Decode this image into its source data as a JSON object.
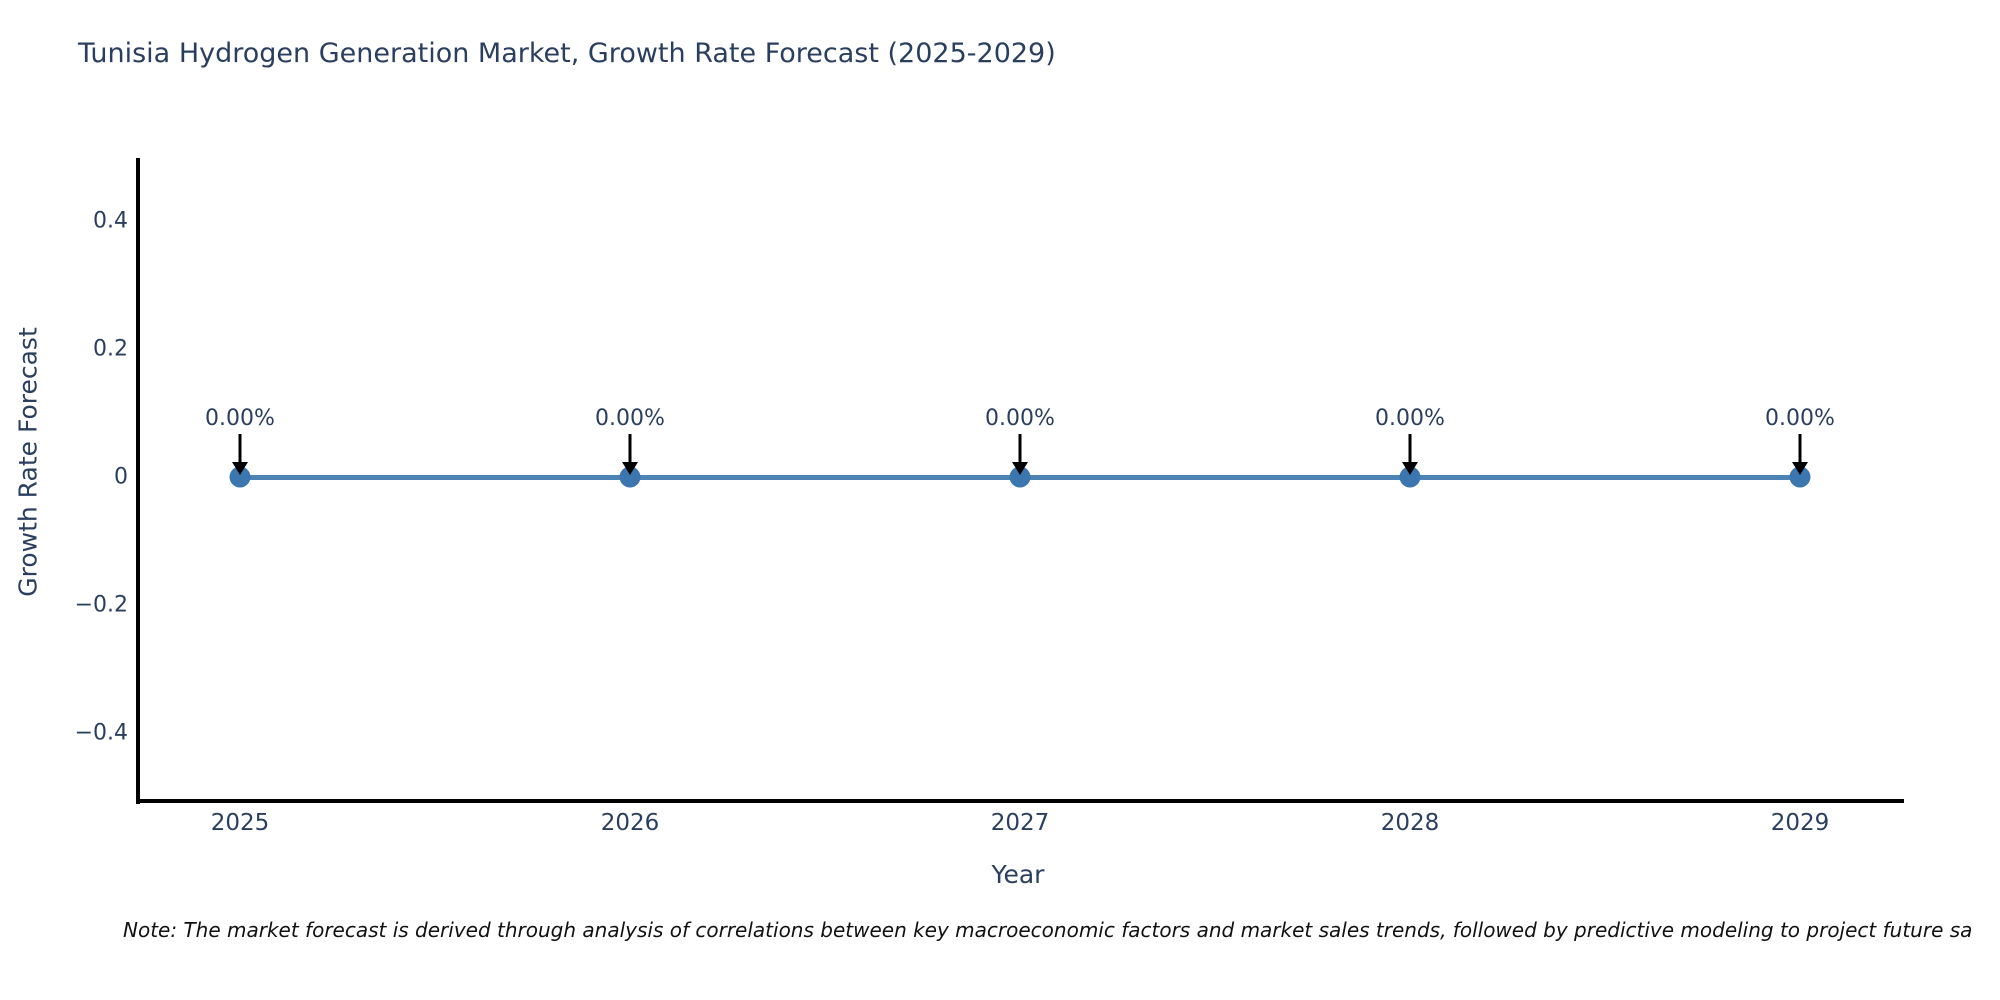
{
  "chart_data": {
    "type": "line",
    "title": "Tunisia Hydrogen Generation Market, Growth Rate Forecast (2025-2029)",
    "xlabel": "Year",
    "ylabel": "Growth Rate Forecast",
    "x": [
      2025,
      2026,
      2027,
      2028,
      2029
    ],
    "values": [
      0,
      0,
      0,
      0,
      0
    ],
    "point_labels": [
      "0.00%",
      "0.00%",
      "0.00%",
      "0.00%",
      "0.00%"
    ],
    "yticks": [
      {
        "value": 0.4,
        "label": "0.4"
      },
      {
        "value": 0.2,
        "label": "0.2"
      },
      {
        "value": 0,
        "label": "0"
      },
      {
        "value": -0.2,
        "label": "−0.2"
      },
      {
        "value": -0.4,
        "label": "−0.4"
      }
    ],
    "ylim": [
      -0.5,
      0.5
    ],
    "grid": false,
    "legend": "none",
    "annotation_style": "down-arrow-to-point",
    "colors": {
      "line": "#4c84b6",
      "marker": "#3b76af",
      "axis": "#000000",
      "text": "#2a3f5f",
      "arrow": "#000000"
    }
  },
  "note": "Note: The market forecast is derived through analysis of correlations between key macroeconomic factors and market sales trends, followed by predictive modeling to project future sa"
}
